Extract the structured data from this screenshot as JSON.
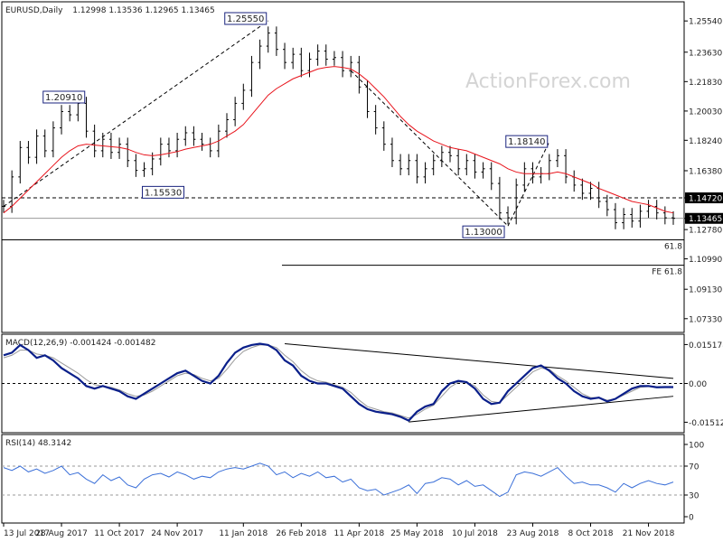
{
  "header": {
    "title": "EURUSD,Daily",
    "ohlc": "1.12998 1.13536 1.12965 1.13465"
  },
  "watermark": "ActionForex.com",
  "colors": {
    "price": "#000000",
    "ma": "#e8141c",
    "macd": "#0a1f8a",
    "signal": "#9a9a9a",
    "rsi": "#3a6fd8",
    "box_border": "#1a237e",
    "watermark": "#d8d8d8"
  },
  "chart_data": [
    {
      "type": "line",
      "pane": "price",
      "title": "EURUSD,Daily",
      "ylim": [
        1.066,
        1.266
      ],
      "y_ticks": [
        1.2554,
        1.2363,
        1.2183,
        1.2003,
        1.1824,
        1.1638,
        1.1472,
        1.13465,
        1.1278,
        1.1099,
        1.0913,
        1.0733
      ],
      "y_tick_labels": [
        "1.25540",
        "1.23630",
        "1.21830",
        "1.20030",
        "1.18240",
        "1.16380",
        "1.14720",
        "1.13465",
        "1.12780",
        "1.10990",
        "1.09130",
        "1.07330"
      ],
      "highlighted_ticks": [
        "1.14720",
        "1.13465"
      ],
      "annotations": [
        {
          "label": "1.25550",
          "value": 1.2555,
          "date_index": 32
        },
        {
          "label": "1.20910",
          "value": 1.2091,
          "date_index": 5
        },
        {
          "label": "1.18140",
          "value": 1.1814,
          "date_index": 66
        },
        {
          "label": "1.15530",
          "value": 1.1553,
          "date_index": 17
        },
        {
          "label": "1.13000",
          "value": 1.13,
          "date_index": 61
        }
      ],
      "levels": [
        {
          "value": 1.1472,
          "style": "dashed",
          "label": ""
        },
        {
          "value": 1.1347,
          "style": "solid-gray",
          "label": ""
        },
        {
          "value": 1.1215,
          "style": "solid",
          "label": "61.8"
        },
        {
          "value": 1.106,
          "style": "solid",
          "label": "FE 61.8"
        }
      ],
      "series": [
        {
          "role": "close",
          "values": [
            1.142,
            1.16,
            1.178,
            1.172,
            1.185,
            1.176,
            1.19,
            1.2,
            1.198,
            1.205,
            1.188,
            1.176,
            1.183,
            1.175,
            1.18,
            1.17,
            1.164,
            1.165,
            1.171,
            1.18,
            1.176,
            1.183,
            1.187,
            1.183,
            1.18,
            1.176,
            1.188,
            1.195,
            1.205,
            1.213,
            1.23,
            1.24,
            1.248,
            1.238,
            1.23,
            1.235,
            1.225,
            1.232,
            1.237,
            1.232,
            1.233,
            1.225,
            1.23,
            1.215,
            1.2,
            1.19,
            1.18,
            1.17,
            1.165,
            1.17,
            1.16,
            1.165,
            1.17,
            1.175,
            1.173,
            1.165,
            1.17,
            1.163,
            1.165,
            1.156,
            1.138,
            1.135,
            1.155,
            1.165,
            1.16,
            1.162,
            1.17,
            1.173,
            1.16,
            1.155,
            1.15,
            1.153,
            1.145,
            1.14,
            1.132,
            1.137,
            1.133,
            1.139,
            1.142,
            1.138,
            1.135,
            1.1347
          ]
        },
        {
          "role": "moving-average",
          "values": [
            1.138,
            1.142,
            1.147,
            1.152,
            1.157,
            1.162,
            1.167,
            1.172,
            1.176,
            1.179,
            1.18,
            1.1795,
            1.179,
            1.1785,
            1.178,
            1.177,
            1.175,
            1.1735,
            1.173,
            1.1735,
            1.1745,
            1.1755,
            1.177,
            1.178,
            1.179,
            1.18,
            1.182,
            1.185,
            1.188,
            1.192,
            1.198,
            1.204,
            1.21,
            1.214,
            1.217,
            1.22,
            1.222,
            1.224,
            1.226,
            1.227,
            1.2275,
            1.227,
            1.226,
            1.223,
            1.219,
            1.214,
            1.209,
            1.203,
            1.197,
            1.192,
            1.188,
            1.185,
            1.182,
            1.18,
            1.178,
            1.177,
            1.176,
            1.174,
            1.172,
            1.17,
            1.168,
            1.165,
            1.163,
            1.162,
            1.162,
            1.162,
            1.162,
            1.163,
            1.162,
            1.16,
            1.158,
            1.156,
            1.153,
            1.151,
            1.149,
            1.147,
            1.145,
            1.144,
            1.143,
            1.141,
            1.139,
            1.138
          ]
        }
      ],
      "trendlines": [
        {
          "from": [
            0,
            1.142
          ],
          "to": [
            32,
            1.2555
          ],
          "style": "dashed"
        },
        {
          "from": [
            42,
            1.225
          ],
          "to": [
            61,
            1.13
          ],
          "style": "dashed"
        },
        {
          "from": [
            61,
            1.13
          ],
          "to": [
            66,
            1.1814
          ],
          "style": "dashed"
        }
      ]
    },
    {
      "type": "line",
      "pane": "macd",
      "title": "MACD(12,26,9) -0.001424 -0.001482",
      "ylim": [
        -0.0185,
        0.0185
      ],
      "y_tick_labels": [
        "0.015178",
        "0.00",
        "-0.015126"
      ],
      "y_ticks": [
        0.015178,
        0.0,
        -0.015126
      ],
      "series": [
        {
          "name": "",
          "role": "macd",
          "values": [
            0.011,
            0.012,
            0.015,
            0.013,
            0.01,
            0.011,
            0.009,
            0.006,
            0.004,
            0.002,
            -0.001,
            -0.002,
            -0.001,
            -0.002,
            -0.003,
            -0.005,
            -0.006,
            -0.004,
            -0.002,
            0.0,
            0.002,
            0.004,
            0.005,
            0.003,
            0.001,
            0.0,
            0.003,
            0.008,
            0.012,
            0.014,
            0.015,
            0.0155,
            0.015,
            0.013,
            0.009,
            0.007,
            0.003,
            0.001,
            0.0,
            0.0,
            -0.001,
            -0.002,
            -0.005,
            -0.008,
            -0.01,
            -0.011,
            -0.0115,
            -0.012,
            -0.013,
            -0.0145,
            -0.011,
            -0.009,
            -0.008,
            -0.003,
            0.0,
            0.001,
            0.0005,
            -0.002,
            -0.006,
            -0.008,
            -0.0075,
            -0.003,
            0.0,
            0.003,
            0.006,
            0.007,
            0.005,
            0.002,
            0.0,
            -0.003,
            -0.005,
            -0.006,
            -0.0055,
            -0.007,
            -0.006,
            -0.004,
            -0.002,
            -0.001,
            -0.001,
            -0.0015,
            -0.0014,
            -0.0014
          ]
        },
        {
          "name": "",
          "role": "signal",
          "values": [
            0.01,
            0.011,
            0.013,
            0.013,
            0.0115,
            0.011,
            0.01,
            0.008,
            0.006,
            0.004,
            0.0015,
            -0.0005,
            -0.001,
            -0.0015,
            -0.0025,
            -0.004,
            -0.005,
            -0.0045,
            -0.003,
            -0.001,
            0.001,
            0.003,
            0.004,
            0.0035,
            0.002,
            0.001,
            0.002,
            0.0055,
            0.0095,
            0.0125,
            0.014,
            0.015,
            0.015,
            0.014,
            0.011,
            0.0085,
            0.005,
            0.0025,
            0.001,
            0.0005,
            -0.0005,
            -0.0015,
            -0.0035,
            -0.0065,
            -0.009,
            -0.01,
            -0.011,
            -0.0115,
            -0.0125,
            -0.0135,
            -0.012,
            -0.01,
            -0.0085,
            -0.005,
            -0.0015,
            0.0005,
            0.0005,
            -0.001,
            -0.0045,
            -0.007,
            -0.0075,
            -0.0045,
            -0.0015,
            0.0015,
            0.0045,
            0.006,
            0.0055,
            0.003,
            0.001,
            -0.0015,
            -0.004,
            -0.0055,
            -0.0055,
            -0.0065,
            -0.006,
            -0.0045,
            -0.003,
            -0.0015,
            -0.0012,
            -0.0013,
            -0.0014,
            -0.0015
          ]
        }
      ],
      "trendlines": [
        {
          "from": [
            34,
            0.0155
          ],
          "to": [
            81,
            0.002
          ],
          "style": "solid"
        },
        {
          "from": [
            49,
            -0.015
          ],
          "to": [
            81,
            -0.005
          ],
          "style": "solid"
        }
      ]
    },
    {
      "type": "line",
      "pane": "rsi",
      "title": "RSI(14) 48.3142",
      "ylim": [
        0,
        100
      ],
      "y_tick_labels": [
        "100",
        "70",
        "30",
        "0"
      ],
      "y_ticks": [
        100,
        70,
        30,
        0
      ],
      "series": [
        {
          "name": "",
          "values": [
            68,
            64,
            70,
            62,
            66,
            60,
            64,
            70,
            58,
            61,
            52,
            46,
            58,
            50,
            55,
            44,
            40,
            52,
            58,
            60,
            55,
            62,
            58,
            52,
            56,
            54,
            62,
            66,
            68,
            66,
            70,
            74,
            70,
            58,
            62,
            54,
            60,
            56,
            62,
            54,
            56,
            48,
            52,
            40,
            36,
            38,
            30,
            34,
            38,
            44,
            32,
            46,
            48,
            54,
            52,
            44,
            50,
            42,
            44,
            36,
            28,
            34,
            58,
            62,
            60,
            56,
            62,
            68,
            56,
            46,
            48,
            44,
            44,
            40,
            34,
            46,
            40,
            46,
            50,
            46,
            44,
            48
          ]
        }
      ],
      "levels": [
        70,
        30
      ]
    }
  ],
  "x_axis": {
    "labels": [
      "13 Jul 2017",
      "28 Aug 2017",
      "11 Oct 2017",
      "24 Nov 2017",
      "11 Jan 2018",
      "26 Feb 2018",
      "11 Apr 2018",
      "25 May 2018",
      "10 Jul 2018",
      "23 Aug 2018",
      "8 Oct 2018",
      "21 Nov 2018"
    ],
    "label_indices": [
      0,
      7,
      14,
      21,
      29,
      36,
      43,
      50,
      57,
      64,
      71,
      78
    ]
  }
}
